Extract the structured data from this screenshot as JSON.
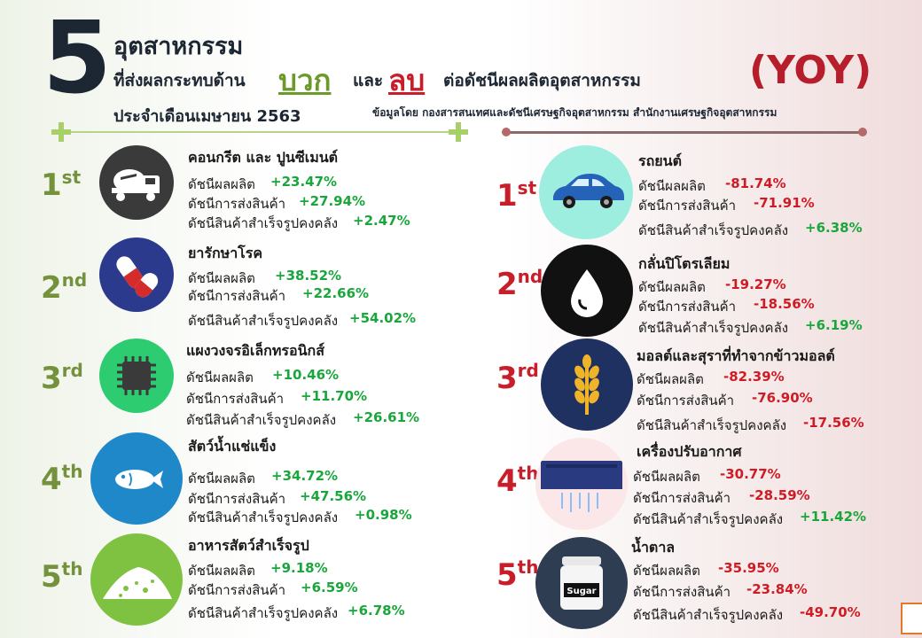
{
  "header": {
    "big_number": "5",
    "line1": "อุตสาหกรรม",
    "line2": "ที่ส่งผลกระทบด้าน",
    "positive_word": "บวก",
    "and_word": "และ",
    "negative_word": "ลบ",
    "index_text": "ต่อดัชนีผลผลิตอุตสาหกรรม",
    "line3": "ประจำเดือนเมษายน  2563",
    "yoy": "(YOY)",
    "source": "ข้อมูลโดย  กองสารสนเทศและดัชนีเศรษฐกิจอุตสาหกรรม  สำนักงานเศรษฐกิจอุตสาหกรรม"
  },
  "labels": {
    "production": "ดัชนีผลผลิต",
    "shipment": "ดัชนีการส่งสินค้า",
    "inventory": "ดัชนีสินค้าสำเร็จรูปคงคลัง"
  },
  "positive": [
    {
      "rank": "1",
      "suffix": "st",
      "icon": "cement-truck-icon",
      "name": "คอนกรีต และ  ปูนซีเมนต์",
      "production": "+23.47%",
      "shipment": "+27.94%",
      "inventory": "+2.47%"
    },
    {
      "rank": "2",
      "suffix": "nd",
      "icon": "pills-icon",
      "name": "ยารักษาโรค",
      "production": "+38.52%",
      "shipment": "+22.66%",
      "inventory": "+54.02%"
    },
    {
      "rank": "3",
      "suffix": "rd",
      "icon": "microchip-icon",
      "name": "แผงวงจรอิเล็กทรอนิกส์",
      "production": "+10.46%",
      "shipment": "+11.70%",
      "inventory": "+26.61%"
    },
    {
      "rank": "4",
      "suffix": "th",
      "icon": "fish-icon",
      "name": "สัตว์น้ำแช่แข็ง",
      "production": "+34.72%",
      "shipment": "+47.56%",
      "inventory": "+0.98%"
    },
    {
      "rank": "5",
      "suffix": "th",
      "icon": "feed-pile-icon",
      "name": "อาหารสัตว์สำเร็จรูป",
      "production": "+9.18%",
      "shipment": "+6.59%",
      "inventory": "+6.78%"
    }
  ],
  "negative": [
    {
      "rank": "1",
      "suffix": "st",
      "icon": "car-icon",
      "name": "รถยนต์",
      "production": "-81.74%",
      "shipment": "-71.91%",
      "inventory": "+6.38%"
    },
    {
      "rank": "2",
      "suffix": "nd",
      "icon": "oil-drop-icon",
      "name": "กลั่นปิโตรเลียม",
      "production": "-19.27%",
      "shipment": "-18.56%",
      "inventory": "+6.19%"
    },
    {
      "rank": "3",
      "suffix": "rd",
      "icon": "wheat-icon",
      "name": "มอลต์และสุราที่ทำจากข้าวมอลต์",
      "production": "-82.39%",
      "shipment": "-76.90%",
      "inventory": "-17.56%"
    },
    {
      "rank": "4",
      "suffix": "th",
      "icon": "air-conditioner-icon",
      "name": "เครื่องปรับอากาศ",
      "production": "-30.77%",
      "shipment": "-28.59%",
      "inventory": "+11.42%"
    },
    {
      "rank": "5",
      "suffix": "th",
      "icon": "sugar-jar-icon",
      "name": "น้ำตาล",
      "production": "-35.95%",
      "shipment": "-23.84%",
      "inventory": "-49.70%"
    }
  ],
  "colors": {
    "positive_value": "#19a63b",
    "negative_value": "#d01b24",
    "rank_positive": "#74913c",
    "rank_negative": "#c81e2a",
    "circle_dark": "#3a3a3a",
    "circle_navy": "#2b3a8c",
    "circle_green": "#2ecc71",
    "circle_blue": "#1f88c9",
    "circle_lime": "#7fc241",
    "circle_mint": "#9eeee0",
    "circle_black": "#111111",
    "circle_navy2": "#1f3160",
    "circle_slate": "#2e3d52"
  }
}
